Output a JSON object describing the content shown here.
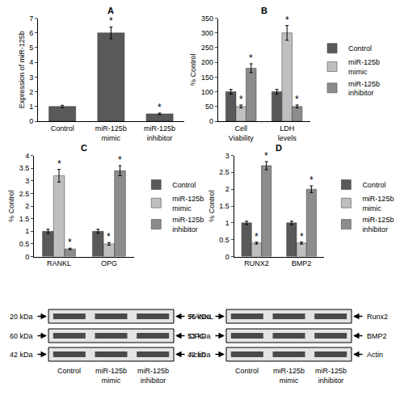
{
  "chart_data": [
    {
      "type": "bar",
      "title": "A",
      "y_label": "Expression of miR-125b",
      "categories": [
        "Control",
        "miR-125b mimic",
        "miR-125b inhibitor"
      ],
      "values": [
        1,
        6.0,
        0.5
      ],
      "errors": [
        0.08,
        0.4,
        0.05
      ],
      "color": "#595959",
      "ylim": [
        0,
        7
      ],
      "yticks": [
        0,
        1,
        2,
        3,
        4,
        5,
        6,
        7
      ],
      "grid": false,
      "annotations": [
        {
          "category": "miR-125b mimic",
          "text": "*"
        },
        {
          "category": "miR-125b inhibitor",
          "text": "*"
        }
      ]
    },
    {
      "type": "bar",
      "title": "B",
      "y_label": "% Control",
      "categories": [
        "Cell Viability",
        "LDH levels"
      ],
      "series": [
        {
          "name": "Control",
          "color": "#595959",
          "values": [
            100,
            100
          ],
          "errors": [
            8,
            8
          ]
        },
        {
          "name": "miR-125b mimic",
          "color": "#bfbfbf",
          "values": [
            50,
            300
          ],
          "errors": [
            5,
            25
          ]
        },
        {
          "name": "miR-125b inhibitor",
          "color": "#8c8c8c",
          "values": [
            180,
            50
          ],
          "errors": [
            15,
            5
          ]
        }
      ],
      "ylim": [
        0,
        350
      ],
      "yticks": [
        0,
        50,
        100,
        150,
        200,
        250,
        300,
        350
      ],
      "grid": false,
      "legend": "right",
      "annotations": [
        {
          "category": "Cell Viability",
          "series": "miR-125b mimic",
          "text": "*"
        },
        {
          "category": "Cell Viability",
          "series": "miR-125b inhibitor",
          "text": "*"
        },
        {
          "category": "LDH levels",
          "series": "miR-125b mimic",
          "text": "*"
        },
        {
          "category": "LDH levels",
          "series": "miR-125b inhibitor",
          "text": "*"
        }
      ]
    },
    {
      "type": "bar",
      "title": "C",
      "y_label": "% Control",
      "categories": [
        "RANKL",
        "OPG"
      ],
      "series": [
        {
          "name": "Control",
          "color": "#595959",
          "values": [
            1,
            1
          ],
          "errors": [
            0.08,
            0.08
          ]
        },
        {
          "name": "miR-125b mimic",
          "color": "#bfbfbf",
          "values": [
            3.2,
            0.5
          ],
          "errors": [
            0.25,
            0.05
          ]
        },
        {
          "name": "miR-125b inhibitor",
          "color": "#8c8c8c",
          "values": [
            0.3,
            3.4
          ],
          "errors": [
            0.03,
            0.2
          ]
        }
      ],
      "ylim": [
        0,
        4
      ],
      "yticks": [
        0,
        0.5,
        1,
        1.5,
        2,
        2.5,
        3,
        3.5,
        4
      ],
      "grid": false,
      "legend": "right",
      "annotations": [
        {
          "category": "RANKL",
          "series": "miR-125b mimic",
          "text": "*"
        },
        {
          "category": "RANKL",
          "series": "miR-125b inhibitor",
          "text": "*"
        },
        {
          "category": "OPG",
          "series": "miR-125b mimic",
          "text": "*"
        },
        {
          "category": "OPG",
          "series": "miR-125b inhibitor",
          "text": "*"
        }
      ]
    },
    {
      "type": "bar",
      "title": "D",
      "y_label": "% Control",
      "categories": [
        "RUNX2",
        "BMP2"
      ],
      "series": [
        {
          "name": "Control",
          "color": "#595959",
          "values": [
            1,
            1
          ],
          "errors": [
            0.05,
            0.05
          ]
        },
        {
          "name": "miR-125b mimic",
          "color": "#bfbfbf",
          "values": [
            0.4,
            0.4
          ],
          "errors": [
            0.03,
            0.03
          ]
        },
        {
          "name": "miR-125b inhibitor",
          "color": "#8c8c8c",
          "values": [
            2.7,
            2.0
          ],
          "errors": [
            0.12,
            0.1
          ]
        }
      ],
      "ylim": [
        0,
        3
      ],
      "yticks": [
        0,
        0.5,
        1,
        1.5,
        2,
        2.5,
        3
      ],
      "grid": false,
      "legend": "right",
      "annotations": [
        {
          "category": "RUNX2",
          "series": "miR-125b mimic",
          "text": "*"
        },
        {
          "category": "RUNX2",
          "series": "miR-125b inhibitor",
          "text": "*"
        },
        {
          "category": "BMP2",
          "series": "miR-125b mimic",
          "text": "*"
        },
        {
          "category": "BMP2",
          "series": "miR-125b inhibitor",
          "text": "*"
        }
      ]
    }
  ],
  "blots": [
    {
      "rows": [
        {
          "size": "20 kDa",
          "label": "RANKL"
        },
        {
          "size": "60 kDa",
          "label": "OPG"
        },
        {
          "size": "42 kDa",
          "label": "Actin"
        }
      ],
      "lanes": [
        "Control",
        "miR-125b mimic",
        "miR-125b inhibitor"
      ]
    },
    {
      "rows": [
        {
          "size": "56 kDa",
          "label": "Runx2"
        },
        {
          "size": "53 kDa",
          "label": "BMP2"
        },
        {
          "size": "42 kDa",
          "label": "Actin"
        }
      ],
      "lanes": [
        "Control",
        "miR-125b mimic",
        "miR-125b inhibitor"
      ]
    }
  ]
}
